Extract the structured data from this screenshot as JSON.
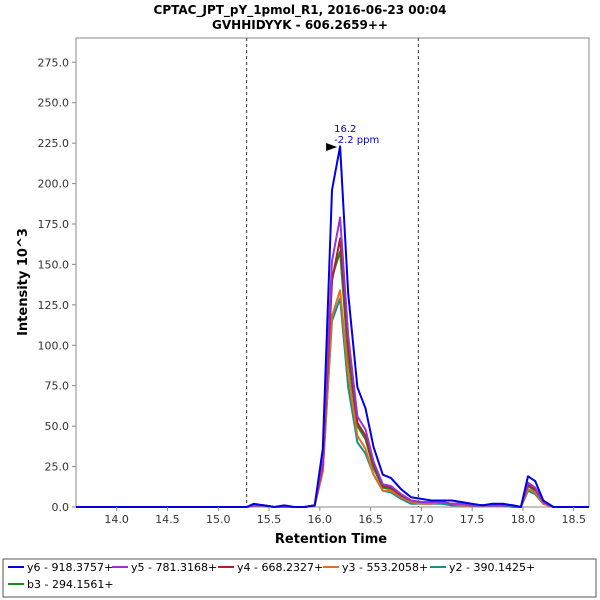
{
  "chart_data": {
    "type": "line",
    "title": "CPTAC_JPT_pY_1pmol_R1, 2016-06-23 00:04",
    "subtitle": "GVHHIDYYK - 606.2659++",
    "xlabel": "Retention Time",
    "ylabel": "Intensity 10^3",
    "xlim": [
      13.6,
      18.65
    ],
    "ylim": [
      0,
      290
    ],
    "x_ticks": [
      "14.0",
      "14.5",
      "15.0",
      "15.5",
      "16.0",
      "16.5",
      "17.0",
      "17.5",
      "18.0",
      "18.5"
    ],
    "y_ticks": [
      "0.0",
      "25.0",
      "50.0",
      "75.0",
      "100.0",
      "125.0",
      "150.0",
      "175.0",
      "200.0",
      "225.0",
      "250.0",
      "275.0"
    ],
    "vlines": [
      15.28,
      16.97
    ],
    "annotation": {
      "x": 16.2,
      "y": 222,
      "line1": "16.2",
      "line2": "-2.2 ppm",
      "color": "#0000cc"
    },
    "legend_position": "bottom",
    "series": [
      {
        "name": "y6 - 918.3757+",
        "color": "#0000e0",
        "x": [
          13.6,
          15.2,
          15.28,
          15.35,
          15.45,
          15.55,
          15.65,
          15.75,
          15.85,
          15.95,
          16.03,
          16.12,
          16.2,
          16.28,
          16.37,
          16.45,
          16.53,
          16.62,
          16.7,
          16.8,
          16.9,
          17.0,
          17.1,
          17.2,
          17.3,
          17.4,
          17.5,
          17.6,
          17.7,
          17.8,
          17.9,
          17.98,
          18.05,
          18.12,
          18.2,
          18.3,
          18.4,
          18.65
        ],
        "y": [
          0,
          0,
          0,
          2,
          1,
          0,
          1,
          0,
          0,
          1,
          36,
          196,
          223,
          132,
          74,
          61,
          37,
          20,
          18,
          11,
          6,
          5,
          4,
          4,
          4,
          3,
          2,
          1,
          2,
          2,
          1,
          0,
          19,
          16,
          4,
          0,
          0,
          0
        ]
      },
      {
        "name": "y5 - 781.3168+",
        "color": "#9933dd",
        "x": [
          13.6,
          15.2,
          15.28,
          15.35,
          15.45,
          15.55,
          15.65,
          15.75,
          15.85,
          15.95,
          16.03,
          16.12,
          16.2,
          16.28,
          16.37,
          16.45,
          16.53,
          16.62,
          16.7,
          16.8,
          16.9,
          17.0,
          17.1,
          17.2,
          17.3,
          17.4,
          17.5,
          17.6,
          17.7,
          17.8,
          17.9,
          17.98,
          18.05,
          18.12,
          18.2,
          18.3,
          18.4,
          18.65
        ],
        "y": [
          0,
          0,
          0,
          1,
          1,
          0,
          0,
          0,
          0,
          1,
          28,
          152,
          179,
          106,
          56,
          48,
          28,
          14,
          13,
          8,
          4,
          3,
          3,
          3,
          2,
          2,
          1,
          1,
          1,
          1,
          1,
          0,
          15,
          12,
          3,
          0,
          0,
          0
        ]
      },
      {
        "name": "y4 - 668.2327+",
        "color": "#aa2222",
        "x": [
          13.6,
          15.2,
          15.28,
          15.35,
          15.45,
          15.55,
          15.65,
          15.75,
          15.85,
          15.95,
          16.03,
          16.12,
          16.2,
          16.28,
          16.37,
          16.45,
          16.53,
          16.62,
          16.7,
          16.8,
          16.9,
          17.0,
          17.1,
          17.2,
          17.3,
          17.4,
          17.5,
          17.6,
          17.7,
          17.8,
          17.9,
          17.98,
          18.05,
          18.12,
          18.2,
          18.3,
          18.4,
          18.65
        ],
        "y": [
          0,
          0,
          0,
          1,
          1,
          0,
          0,
          0,
          0,
          1,
          26,
          140,
          166,
          100,
          52,
          44,
          26,
          13,
          12,
          7,
          4,
          3,
          3,
          3,
          2,
          2,
          1,
          1,
          1,
          1,
          1,
          0,
          14,
          11,
          3,
          0,
          0,
          0
        ]
      },
      {
        "name": "y3 - 553.2058+",
        "color": "#e07020",
        "x": [
          13.6,
          15.2,
          15.28,
          15.35,
          15.45,
          15.55,
          15.65,
          15.75,
          15.85,
          15.95,
          16.03,
          16.12,
          16.2,
          16.28,
          16.37,
          16.45,
          16.53,
          16.62,
          16.7,
          16.8,
          16.9,
          17.0,
          17.1,
          17.2,
          17.3,
          17.4,
          17.5,
          17.6,
          17.7,
          17.8,
          17.9,
          17.98,
          18.05,
          18.12,
          18.2,
          18.3,
          18.4,
          18.65
        ],
        "y": [
          0,
          0,
          0,
          1,
          1,
          0,
          0,
          0,
          0,
          1,
          22,
          118,
          134,
          82,
          44,
          36,
          20,
          10,
          10,
          6,
          3,
          2,
          2,
          3,
          2,
          1,
          1,
          1,
          1,
          1,
          1,
          0,
          11,
          9,
          2,
          0,
          0,
          0
        ]
      },
      {
        "name": "y2 - 390.1425+",
        "color": "#109090",
        "x": [
          13.6,
          15.2,
          15.28,
          15.35,
          15.45,
          15.55,
          15.65,
          15.75,
          15.85,
          15.95,
          16.03,
          16.12,
          16.2,
          16.28,
          16.37,
          16.45,
          16.53,
          16.62,
          16.7,
          16.8,
          16.9,
          17.0,
          17.1,
          17.2,
          17.3,
          17.4,
          17.5,
          17.6,
          17.7,
          17.8,
          17.9,
          17.98,
          18.05,
          18.12,
          18.2,
          18.3,
          18.4,
          18.65
        ],
        "y": [
          0,
          0,
          0,
          1,
          1,
          0,
          0,
          0,
          0,
          1,
          22,
          115,
          129,
          74,
          40,
          33,
          20,
          10,
          9,
          5,
          2,
          2,
          2,
          2,
          1,
          1,
          1,
          1,
          1,
          1,
          0,
          0,
          10,
          8,
          2,
          0,
          0,
          0
        ]
      },
      {
        "name": "b3 - 294.1561+",
        "color": "#1a8a1a",
        "x": [
          13.6,
          15.2,
          15.28,
          15.35,
          15.45,
          15.55,
          15.65,
          15.75,
          15.85,
          15.95,
          16.03,
          16.12,
          16.2,
          16.28,
          16.37,
          16.45,
          16.53,
          16.62,
          16.7,
          16.8,
          16.9,
          17.0,
          17.1,
          17.2,
          17.3,
          17.4,
          17.5,
          17.6,
          17.7,
          17.8,
          17.9,
          17.98,
          18.05,
          18.12,
          18.2,
          18.3,
          18.4,
          18.65
        ],
        "y": [
          0,
          0,
          0,
          1,
          1,
          0,
          0,
          0,
          0,
          1,
          24,
          142,
          158,
          92,
          50,
          42,
          24,
          12,
          11,
          7,
          3,
          3,
          2,
          3,
          2,
          1,
          1,
          1,
          1,
          1,
          1,
          0,
          13,
          10,
          3,
          0,
          0,
          0
        ]
      }
    ]
  }
}
